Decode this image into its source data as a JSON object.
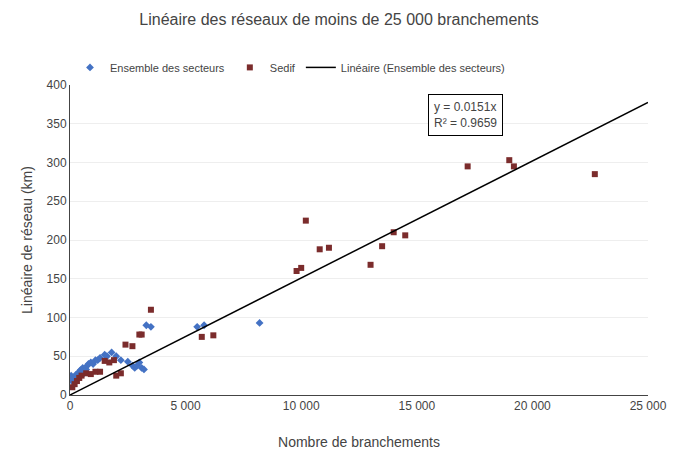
{
  "chart_data": {
    "type": "scatter",
    "title": "Linéaire des réseaux de moins de 25 000 branchements",
    "xlabel": "Nombre de branchements",
    "ylabel": "Linéaire de réseau (km)",
    "xlim": [
      0,
      25000
    ],
    "ylim": [
      0,
      400
    ],
    "xticks": [
      0,
      {
        "value": 5000,
        "label": "5 000"
      },
      {
        "value": 10000,
        "label": "10 000"
      },
      {
        "value": 15000,
        "label": "15 000"
      },
      {
        "value": 20000,
        "label": "20 000"
      },
      {
        "value": 25000,
        "label": "25 000"
      }
    ],
    "yticks": [
      0,
      50,
      100,
      150,
      200,
      250,
      300,
      350,
      400
    ],
    "grid": "y",
    "legend": "top left",
    "annotations": [
      "y = 0.0151x",
      "R² = 0.9659"
    ],
    "series": [
      {
        "name": "Ensemble des secteurs",
        "type": "scatter",
        "marker": "diamond",
        "color": "#4472C4",
        "x": [
          50,
          80,
          100,
          120,
          150,
          200,
          250,
          300,
          350,
          400,
          450,
          500,
          550,
          600,
          700,
          750,
          800,
          900,
          1000,
          1100,
          1200,
          1300,
          1500,
          1600,
          1800,
          2000,
          2200,
          2500,
          2700,
          2800,
          2900,
          3000,
          3100,
          3200,
          3300,
          3500,
          5500,
          5800,
          8200
        ],
        "values": [
          25,
          22,
          18,
          20,
          16,
          22,
          26,
          25,
          28,
          30,
          32,
          30,
          35,
          28,
          33,
          38,
          40,
          42,
          40,
          45,
          45,
          48,
          52,
          50,
          55,
          50,
          45,
          43,
          38,
          35,
          38,
          42,
          35,
          33,
          90,
          88,
          88,
          90,
          93
        ]
      },
      {
        "name": "Sedif",
        "type": "scatter",
        "marker": "square",
        "color": "#7B2C2C",
        "x": [
          100,
          200,
          300,
          400,
          500,
          700,
          900,
          1100,
          1300,
          1500,
          1700,
          1900,
          2000,
          2200,
          2400,
          2700,
          3000,
          3100,
          3500,
          5700,
          6200,
          9800,
          10000,
          10200,
          10800,
          11200,
          13000,
          13500,
          14000,
          14500,
          17200,
          19000,
          19200,
          22700
        ],
        "values": [
          10,
          14,
          18,
          22,
          25,
          28,
          27,
          30,
          30,
          44,
          42,
          45,
          25,
          28,
          65,
          63,
          78,
          78,
          110,
          75,
          77,
          160,
          164,
          225,
          188,
          190,
          168,
          192,
          210,
          206,
          295,
          303,
          295,
          285
        ]
      },
      {
        "name": "Linéaire (Ensemble des secteurs)",
        "type": "line",
        "line_style": "solid",
        "color": "#000000",
        "x": [
          0,
          25000
        ],
        "values": [
          0,
          377.5
        ]
      }
    ]
  }
}
